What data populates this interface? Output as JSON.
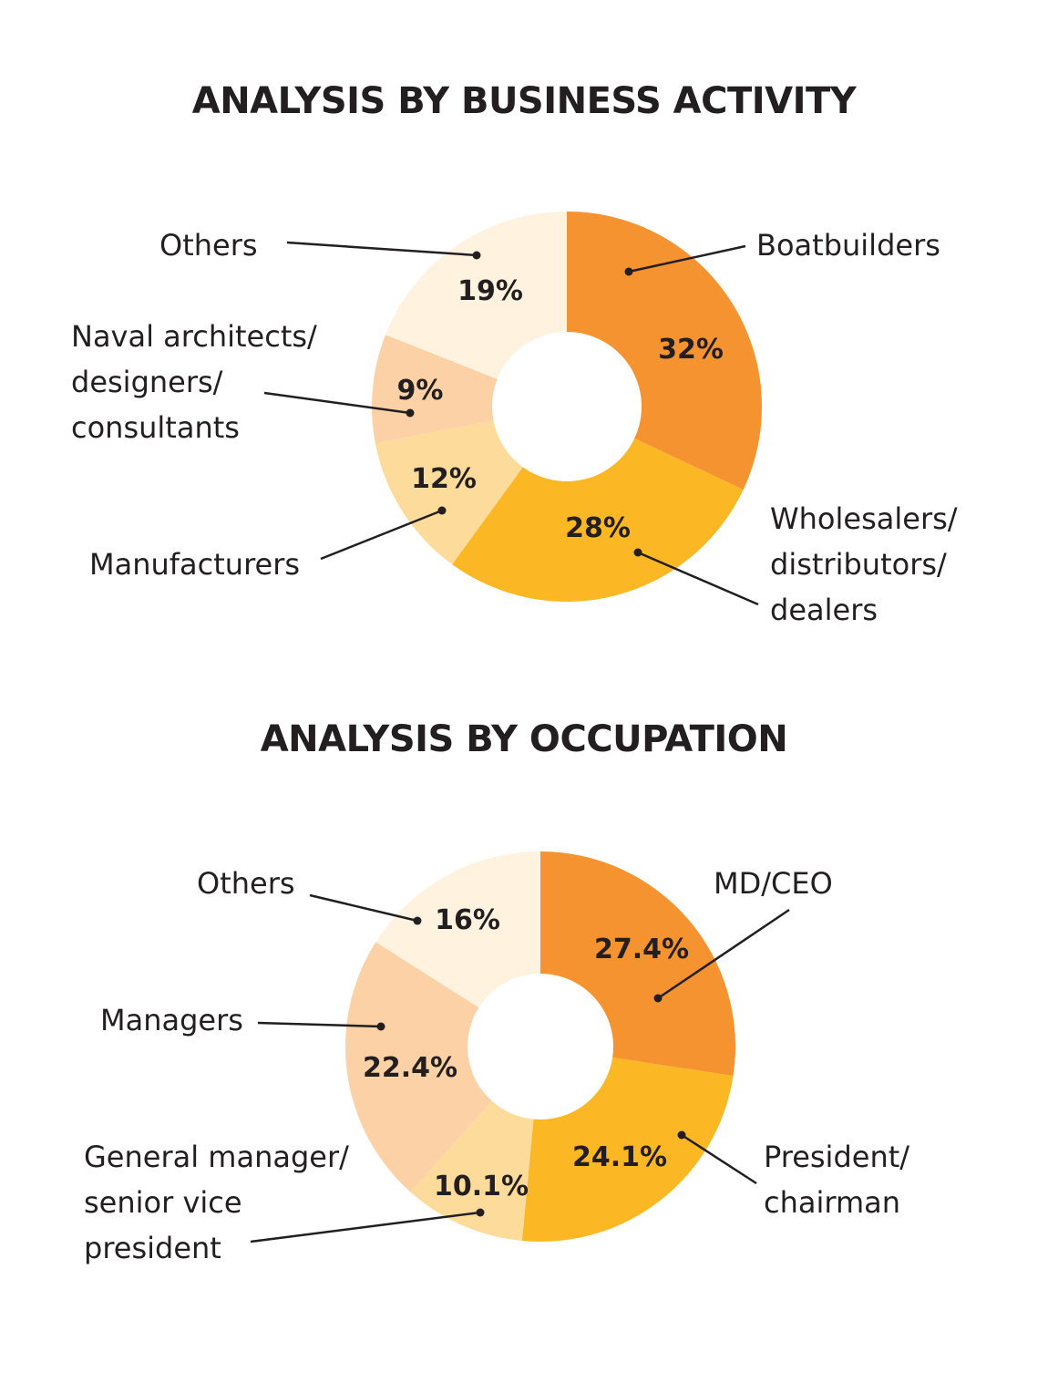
{
  "chart_data": [
    {
      "type": "pie",
      "title": "ANALYSIS BY BUSINESS ACTIVITY",
      "categories": [
        "Boatbuilders",
        "Wholesalers/ distributors/ dealers",
        "Manufacturers",
        "Naval architects/ designers/ consultants",
        "Others"
      ],
      "category_lines": [
        [
          "Boatbuilders"
        ],
        [
          "Wholesalers/",
          "distributors/",
          "dealers"
        ],
        [
          "Manufacturers"
        ],
        [
          "Naval architects/",
          "designers/",
          "consultants"
        ],
        [
          "Others"
        ]
      ],
      "values": [
        32,
        28,
        12,
        9,
        19
      ],
      "value_labels": [
        "32%",
        "28%",
        "12%",
        "9%",
        "19%"
      ],
      "colors": [
        "#f59331",
        "#fbb724",
        "#fddb9a",
        "#fcd1a6",
        "#fff2de"
      ]
    },
    {
      "type": "pie",
      "title": "ANALYSIS BY OCCUPATION",
      "categories": [
        "MD/CEO",
        "President/ chairman",
        "General manager/ senior vice president",
        "Managers",
        "Others"
      ],
      "category_lines": [
        [
          "MD/CEO"
        ],
        [
          "President/",
          "chairman"
        ],
        [
          "General manager/",
          "senior vice",
          "president"
        ],
        [
          "Managers"
        ],
        [
          "Others"
        ]
      ],
      "values": [
        27.4,
        24.1,
        10.1,
        22.4,
        16
      ],
      "value_labels": [
        "27.4%",
        "24.1%",
        "10.1%",
        "22.4%",
        "16%"
      ],
      "colors": [
        "#f59331",
        "#fbb724",
        "#fddb9a",
        "#fcd1a6",
        "#fff2de"
      ]
    }
  ]
}
